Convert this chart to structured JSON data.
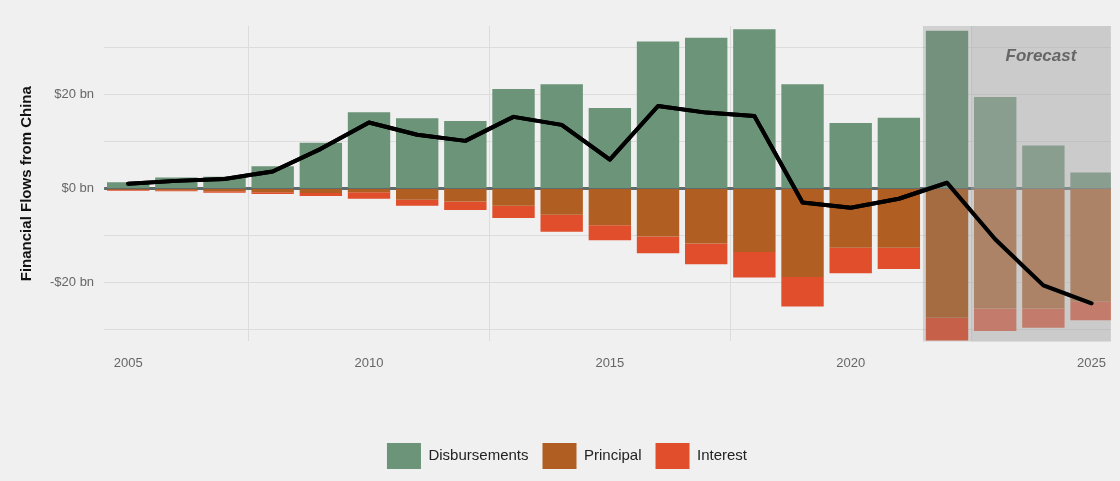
{
  "chart_data": {
    "type": "bar",
    "stacked": true,
    "ylabel": "Financial Flows from China",
    "x": [
      2005,
      2006,
      2007,
      2008,
      2009,
      2010,
      2011,
      2012,
      2013,
      2014,
      2015,
      2016,
      2017,
      2018,
      2019,
      2020,
      2021,
      2022,
      2023,
      2024,
      2025
    ],
    "series": [
      {
        "name": "Disbursements",
        "color": "#6b9478",
        "values": [
          1.3,
          2.3,
          2.5,
          4.7,
          9.7,
          16.2,
          14.9,
          14.3,
          21.1,
          22.1,
          17.1,
          31.2,
          32.0,
          33.8,
          22.1,
          13.9,
          15.0,
          33.5,
          19.4,
          9.1,
          3.4
        ]
      },
      {
        "name": "Principal",
        "color": "#b05e22",
        "values": [
          -0.3,
          -0.4,
          -0.6,
          -0.8,
          -1.0,
          -0.8,
          -2.4,
          -2.8,
          -3.7,
          -5.6,
          -7.8,
          -10.2,
          -11.7,
          -13.5,
          -18.8,
          -12.6,
          -12.6,
          -27.5,
          -25.5,
          -25.5,
          -24.1
        ]
      },
      {
        "name": "Interest",
        "color": "#e04e2c",
        "values": [
          -0.2,
          -0.2,
          -0.3,
          -0.4,
          -0.6,
          -1.4,
          -1.3,
          -1.8,
          -2.6,
          -3.6,
          -3.2,
          -3.6,
          -4.4,
          -5.4,
          -6.3,
          -5.4,
          -4.5,
          -4.8,
          -4.8,
          -4.1,
          -3.9
        ]
      },
      {
        "type": "line",
        "color": "#000000",
        "marker": "none",
        "values": [
          1.0,
          1.6,
          2.0,
          3.6,
          8.4,
          14.0,
          11.4,
          10.1,
          15.2,
          13.5,
          6.1,
          17.5,
          16.1,
          15.4,
          -3.0,
          -4.1,
          -2.2,
          1.2,
          -10.8,
          -20.6,
          -24.4
        ]
      }
    ],
    "xlim": [
      2004.5,
      2025.4
    ],
    "xticks": [
      2005,
      2010,
      2015,
      2020,
      2025
    ],
    "ylim": [
      -32.5,
      34.5
    ],
    "yticks": [
      {
        "value": -30,
        "label": null
      },
      {
        "value": -20,
        "label": "-$20 bn"
      },
      {
        "value": -10,
        "label": null
      },
      {
        "value": 0,
        "label": "$0 bn"
      },
      {
        "value": 10,
        "label": null
      },
      {
        "value": 20,
        "label": "$20 bn"
      },
      {
        "value": 30,
        "label": null
      }
    ],
    "grid": true,
    "legend": "bottom",
    "ref_lines": [
      {
        "axis": "y",
        "value": 0,
        "color": "#5f6b6b"
      }
    ],
    "bands": [
      {
        "axis": "x",
        "from": 2021.5,
        "to": 2025.4,
        "color": "#8c8c8c"
      },
      {
        "axis": "x",
        "from": 2022.5,
        "to": 2025.4,
        "label": "Forecast",
        "color": "#bdbdbd"
      }
    ]
  }
}
